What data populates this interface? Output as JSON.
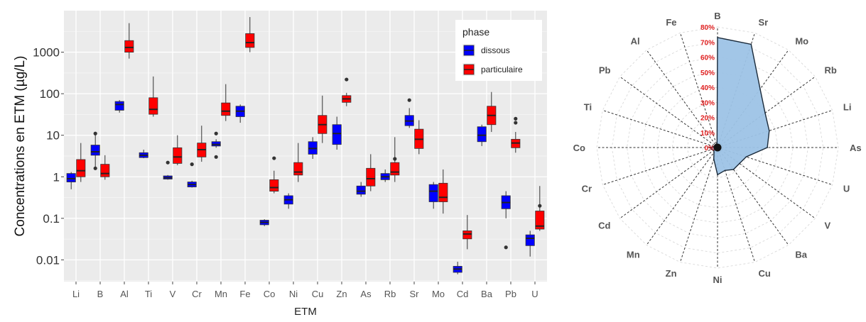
{
  "chart_data": [
    {
      "type": "box",
      "xlabel": "ETM",
      "ylabel": "Concentrations en ETM (µg/L)",
      "y_scale": "log10",
      "ylim": [
        0.003,
        10000
      ],
      "y_ticks": [
        0.01,
        0.1,
        1,
        10,
        100,
        1000
      ],
      "y_tick_labels": [
        "0.01",
        "0.1",
        "1",
        "10",
        "100",
        "1000"
      ],
      "grid": true,
      "legend": {
        "title": "phase",
        "position": "top-right",
        "entries": [
          {
            "name": "dissous",
            "color": "#0000ff"
          },
          {
            "name": "particulaire",
            "color": "#ff0000"
          }
        ]
      },
      "categories": [
        "Li",
        "B",
        "Al",
        "Ti",
        "V",
        "Cr",
        "Mn",
        "Fe",
        "Co",
        "Ni",
        "Cu",
        "Zn",
        "As",
        "Rb",
        "Sr",
        "Mo",
        "Cd",
        "Ba",
        "Pb",
        "U"
      ],
      "series": [
        {
          "name": "dissous",
          "color": "#0000ff",
          "boxes": [
            {
              "cat": "Li",
              "min": 0.5,
              "q1": 0.75,
              "median": 0.9,
              "q3": 1.2,
              "max": 1.3,
              "outliers": []
            },
            {
              "cat": "B",
              "min": 1.5,
              "q1": 3.3,
              "median": 4,
              "q3": 5.8,
              "max": 11,
              "outliers": [
                1.6,
                11
              ]
            },
            {
              "cat": "Al",
              "min": 35,
              "q1": 40,
              "median": 55,
              "q3": 65,
              "max": 70,
              "outliers": []
            },
            {
              "cat": "Ti",
              "min": 2.8,
              "q1": 2.9,
              "median": 3.3,
              "q3": 3.8,
              "max": 4.5,
              "outliers": []
            },
            {
              "cat": "V",
              "min": 0.85,
              "q1": 0.88,
              "median": 0.95,
              "q3": 1.05,
              "max": 1.1,
              "outliers": [
                2.2
              ]
            },
            {
              "cat": "Cr",
              "min": 0.55,
              "q1": 0.57,
              "median": 0.65,
              "q3": 0.75,
              "max": 0.8,
              "outliers": [
                2
              ]
            },
            {
              "cat": "Mn",
              "min": 5,
              "q1": 5.5,
              "median": 6,
              "q3": 7,
              "max": 8,
              "outliers": [
                3,
                11
              ]
            },
            {
              "cat": "Fe",
              "min": 20,
              "q1": 28,
              "median": 38,
              "q3": 50,
              "max": 55,
              "outliers": []
            },
            {
              "cat": "Co",
              "min": 0.065,
              "q1": 0.07,
              "median": 0.08,
              "q3": 0.09,
              "max": 0.095,
              "outliers": []
            },
            {
              "cat": "Ni",
              "min": 0.17,
              "q1": 0.22,
              "median": 0.28,
              "q3": 0.35,
              "max": 0.4,
              "outliers": []
            },
            {
              "cat": "Cu",
              "min": 2.7,
              "q1": 3.5,
              "median": 4.8,
              "q3": 7,
              "max": 9,
              "outliers": []
            },
            {
              "cat": "Zn",
              "min": 4.5,
              "q1": 6,
              "median": 11,
              "q3": 18,
              "max": 28,
              "outliers": []
            },
            {
              "cat": "As",
              "min": 0.33,
              "q1": 0.38,
              "median": 0.45,
              "q3": 0.6,
              "max": 0.75,
              "outliers": []
            },
            {
              "cat": "Rb",
              "min": 0.75,
              "q1": 0.85,
              "median": 1,
              "q3": 1.2,
              "max": 1.5,
              "outliers": []
            },
            {
              "cat": "Sr",
              "min": 15,
              "q1": 17,
              "median": 22,
              "q3": 30,
              "max": 45,
              "outliers": [
                70
              ]
            },
            {
              "cat": "Mo",
              "min": 0.17,
              "q1": 0.25,
              "median": 0.45,
              "q3": 0.65,
              "max": 0.75,
              "outliers": []
            },
            {
              "cat": "Cd",
              "min": 0.0045,
              "q1": 0.005,
              "median": 0.006,
              "q3": 0.007,
              "max": 0.009,
              "outliers": []
            },
            {
              "cat": "Ba",
              "min": 5.5,
              "q1": 7,
              "median": 10,
              "q3": 16,
              "max": 18,
              "outliers": []
            },
            {
              "cat": "Pb",
              "min": 0.1,
              "q1": 0.17,
              "median": 0.24,
              "q3": 0.35,
              "max": 0.45,
              "outliers": [
                0.02
              ]
            },
            {
              "cat": "U",
              "min": 0.012,
              "q1": 0.022,
              "median": 0.033,
              "q3": 0.04,
              "max": 0.05,
              "outliers": []
            }
          ]
        },
        {
          "name": "particulaire",
          "color": "#ff0000",
          "boxes": [
            {
              "cat": "Li",
              "min": 0.75,
              "q1": 1,
              "median": 1.4,
              "q3": 2.6,
              "max": 6.5,
              "outliers": []
            },
            {
              "cat": "B",
              "min": 0.85,
              "q1": 1,
              "median": 1.2,
              "q3": 2,
              "max": 3.3,
              "outliers": []
            },
            {
              "cat": "Al",
              "min": 700,
              "q1": 1000,
              "median": 1300,
              "q3": 1900,
              "max": 5000,
              "outliers": []
            },
            {
              "cat": "Ti",
              "min": 28,
              "q1": 32,
              "median": 42,
              "q3": 80,
              "max": 260,
              "outliers": []
            },
            {
              "cat": "V",
              "min": 1.9,
              "q1": 2.1,
              "median": 3,
              "q3": 5,
              "max": 10,
              "outliers": []
            },
            {
              "cat": "Cr",
              "min": 2.3,
              "q1": 3,
              "median": 4.5,
              "q3": 6.5,
              "max": 17,
              "outliers": []
            },
            {
              "cat": "Mn",
              "min": 22,
              "q1": 30,
              "median": 38,
              "q3": 60,
              "max": 170,
              "outliers": []
            },
            {
              "cat": "Fe",
              "min": 1000,
              "q1": 1300,
              "median": 1700,
              "q3": 2800,
              "max": 7000,
              "outliers": []
            },
            {
              "cat": "Co",
              "min": 0.4,
              "q1": 0.45,
              "median": 0.55,
              "q3": 0.85,
              "max": 1.4,
              "outliers": [
                2.8
              ]
            },
            {
              "cat": "Ni",
              "min": 0.75,
              "q1": 1.1,
              "median": 1.3,
              "q3": 2.2,
              "max": 6.5,
              "outliers": []
            },
            {
              "cat": "Cu",
              "min": 6.5,
              "q1": 11,
              "median": 18,
              "q3": 30,
              "max": 90,
              "outliers": []
            },
            {
              "cat": "Zn",
              "min": 50,
              "q1": 62,
              "median": 75,
              "q3": 90,
              "max": 105,
              "outliers": [
                220
              ]
            },
            {
              "cat": "As",
              "min": 0.45,
              "q1": 0.6,
              "median": 0.9,
              "q3": 1.6,
              "max": 3.5,
              "outliers": []
            },
            {
              "cat": "Rb",
              "min": 0.75,
              "q1": 1.1,
              "median": 1.3,
              "q3": 2.2,
              "max": 9,
              "outliers": [
                2.7
              ]
            },
            {
              "cat": "Sr",
              "min": 3.5,
              "q1": 4.8,
              "median": 8,
              "q3": 14,
              "max": 23,
              "outliers": []
            },
            {
              "cat": "Mo",
              "min": 0.13,
              "q1": 0.25,
              "median": 0.32,
              "q3": 0.7,
              "max": 1.5,
              "outliers": []
            },
            {
              "cat": "Cd",
              "min": 0.018,
              "q1": 0.032,
              "median": 0.042,
              "q3": 0.05,
              "max": 0.12,
              "outliers": []
            },
            {
              "cat": "Ba",
              "min": 12,
              "q1": 18,
              "median": 30,
              "q3": 50,
              "max": 110,
              "outliers": []
            },
            {
              "cat": "Pb",
              "min": 3.8,
              "q1": 5,
              "median": 6.5,
              "q3": 8,
              "max": 12,
              "outliers": [
                20,
                25
              ]
            },
            {
              "cat": "U",
              "min": 0.05,
              "q1": 0.055,
              "median": 0.065,
              "q3": 0.15,
              "max": 0.6,
              "outliers": [
                0.2
              ]
            }
          ]
        }
      ]
    },
    {
      "type": "radar",
      "axes": [
        "B",
        "Sr",
        "Mo",
        "Rb",
        "Li",
        "As",
        "U",
        "V",
        "Ba",
        "Cu",
        "Ni",
        "Zn",
        "Mn",
        "Cd",
        "Cr",
        "Co",
        "Ti",
        "Pb",
        "Al",
        "Fe"
      ],
      "rlim": [
        0,
        80
      ],
      "r_ticks": [
        0,
        10,
        20,
        30,
        40,
        50,
        60,
        70,
        80
      ],
      "r_tick_labels": [
        "0%",
        "10%",
        "20%",
        "30%",
        "40%",
        "50%",
        "60%",
        "70%",
        "80%"
      ],
      "r_tick_color": "#e02020",
      "fill_color": "#9dc3e6",
      "line_color": "#1a2a3a",
      "values": [
        73,
        72,
        48,
        39,
        36,
        33,
        20,
        18,
        18,
        16,
        18,
        8,
        4,
        3,
        4,
        5,
        2,
        1,
        1,
        1
      ],
      "grid": true
    }
  ]
}
